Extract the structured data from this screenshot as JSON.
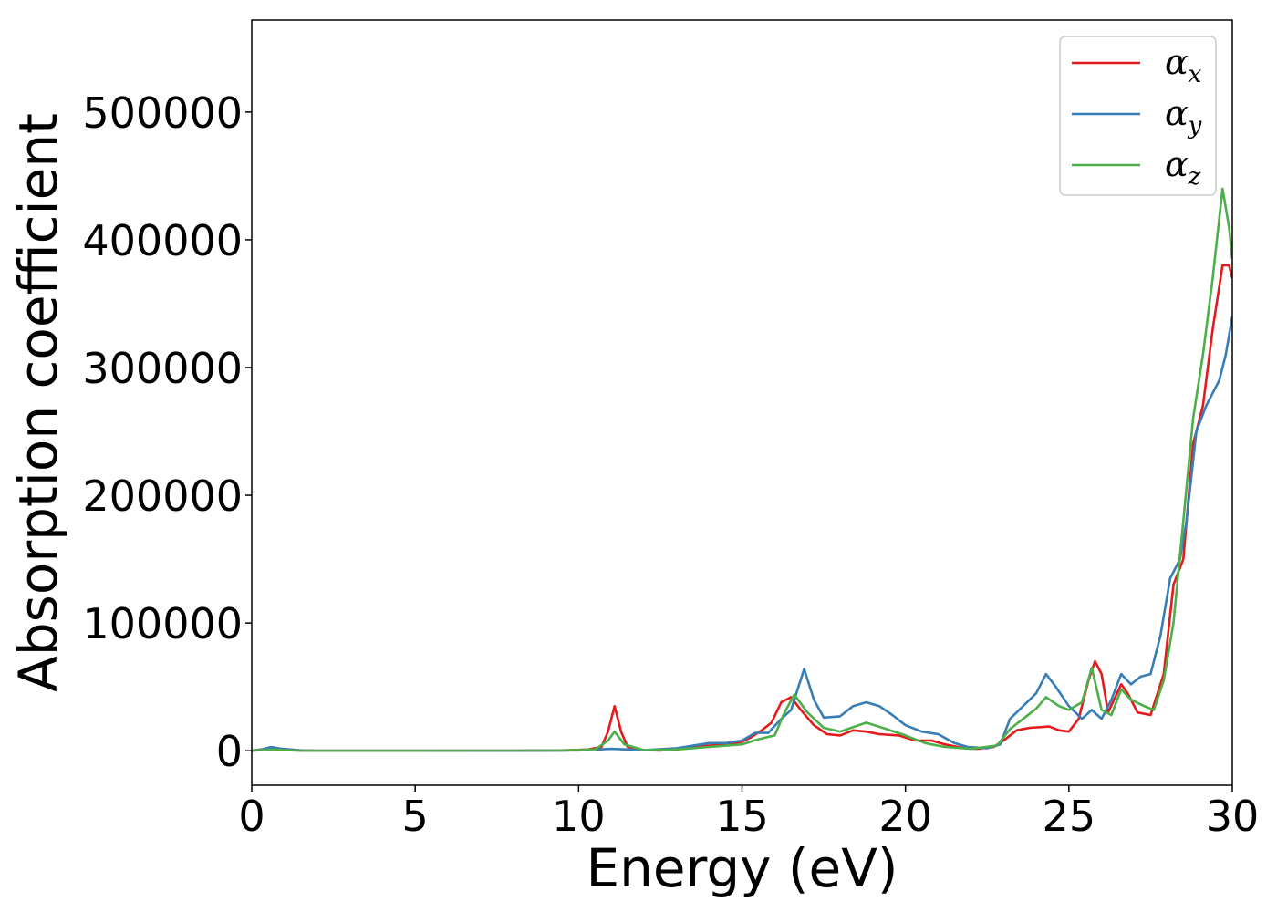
{
  "chart_data": {
    "type": "line",
    "xlabel": "Energy (eV)",
    "ylabel": "Absorption coefficient",
    "xlim": [
      0,
      30
    ],
    "ylim": [
      -27000,
      572000
    ],
    "xticks": [
      0,
      5,
      10,
      15,
      20,
      25,
      30
    ],
    "xtick_labels": [
      "0",
      "5",
      "10",
      "15",
      "20",
      "25",
      "30"
    ],
    "yticks": [
      0,
      100000,
      200000,
      300000,
      400000,
      500000
    ],
    "ytick_labels": [
      "0",
      "100000",
      "200000",
      "300000",
      "400000",
      "500000"
    ],
    "grid": false,
    "legend_position": "top-right",
    "series": [
      {
        "name": "α_x",
        "legend_base": "α",
        "legend_sub": "x",
        "color": "#e41a1c",
        "points": [
          [
            0,
            0
          ],
          [
            0.3,
            1000
          ],
          [
            0.6,
            2500
          ],
          [
            0.9,
            1500
          ],
          [
            1.5,
            300
          ],
          [
            2,
            0
          ],
          [
            5,
            0
          ],
          [
            8,
            0
          ],
          [
            9.5,
            300
          ],
          [
            10.3,
            1000
          ],
          [
            10.7,
            3000
          ],
          [
            10.9,
            15000
          ],
          [
            11.1,
            35000
          ],
          [
            11.3,
            15000
          ],
          [
            11.5,
            3000
          ],
          [
            12,
            500
          ],
          [
            12.5,
            200
          ],
          [
            13,
            1500
          ],
          [
            14,
            4000
          ],
          [
            14.5,
            5000
          ],
          [
            15,
            7000
          ],
          [
            15.3,
            11000
          ],
          [
            15.6,
            16000
          ],
          [
            15.9,
            22000
          ],
          [
            16.2,
            38000
          ],
          [
            16.5,
            42000
          ],
          [
            16.8,
            32000
          ],
          [
            17.2,
            20000
          ],
          [
            17.6,
            13000
          ],
          [
            18,
            12000
          ],
          [
            18.4,
            16000
          ],
          [
            18.8,
            15000
          ],
          [
            19.2,
            13000
          ],
          [
            19.8,
            12000
          ],
          [
            20.3,
            8000
          ],
          [
            20.8,
            8000
          ],
          [
            21.2,
            5000
          ],
          [
            21.8,
            2000
          ],
          [
            22.2,
            1500
          ],
          [
            22.7,
            3000
          ],
          [
            23,
            8000
          ],
          [
            23.4,
            16000
          ],
          [
            23.8,
            18000
          ],
          [
            24.4,
            19000
          ],
          [
            24.7,
            16000
          ],
          [
            25,
            15000
          ],
          [
            25.3,
            25000
          ],
          [
            25.6,
            55000
          ],
          [
            25.8,
            70000
          ],
          [
            26,
            60000
          ],
          [
            26.2,
            30000
          ],
          [
            26.6,
            52000
          ],
          [
            26.8,
            45000
          ],
          [
            27.1,
            30000
          ],
          [
            27.5,
            28000
          ],
          [
            27.9,
            60000
          ],
          [
            28.2,
            130000
          ],
          [
            28.5,
            150000
          ],
          [
            28.8,
            240000
          ],
          [
            29.1,
            270000
          ],
          [
            29.4,
            330000
          ],
          [
            29.7,
            380000
          ],
          [
            29.9,
            380000
          ],
          [
            30,
            370000
          ]
        ]
      },
      {
        "name": "α_y",
        "legend_base": "α",
        "legend_sub": "y",
        "color": "#377eb8",
        "points": [
          [
            0,
            0
          ],
          [
            0.3,
            1000
          ],
          [
            0.6,
            3000
          ],
          [
            0.9,
            1500
          ],
          [
            1.5,
            300
          ],
          [
            2,
            0
          ],
          [
            5,
            0
          ],
          [
            8,
            0
          ],
          [
            10,
            300
          ],
          [
            11,
            1500
          ],
          [
            11.5,
            1000
          ],
          [
            12,
            500
          ],
          [
            13,
            2000
          ],
          [
            14,
            6000
          ],
          [
            14.5,
            6000
          ],
          [
            15,
            8000
          ],
          [
            15.4,
            14000
          ],
          [
            15.8,
            14000
          ],
          [
            16.2,
            25000
          ],
          [
            16.5,
            32000
          ],
          [
            16.9,
            64000
          ],
          [
            17.2,
            40000
          ],
          [
            17.5,
            26000
          ],
          [
            18,
            27000
          ],
          [
            18.4,
            35000
          ],
          [
            18.8,
            38000
          ],
          [
            19.2,
            35000
          ],
          [
            19.6,
            28000
          ],
          [
            20,
            20000
          ],
          [
            20.5,
            15000
          ],
          [
            21,
            13000
          ],
          [
            21.5,
            6000
          ],
          [
            21.9,
            3000
          ],
          [
            22.5,
            2000
          ],
          [
            22.9,
            5000
          ],
          [
            23.2,
            25000
          ],
          [
            23.6,
            35000
          ],
          [
            24,
            45000
          ],
          [
            24.3,
            60000
          ],
          [
            24.6,
            50000
          ],
          [
            25,
            35000
          ],
          [
            25.4,
            25000
          ],
          [
            25.7,
            32000
          ],
          [
            26,
            25000
          ],
          [
            26.3,
            40000
          ],
          [
            26.6,
            60000
          ],
          [
            26.9,
            52000
          ],
          [
            27.2,
            58000
          ],
          [
            27.5,
            60000
          ],
          [
            27.8,
            90000
          ],
          [
            28.1,
            135000
          ],
          [
            28.4,
            150000
          ],
          [
            28.6,
            180000
          ],
          [
            28.9,
            250000
          ],
          [
            29.2,
            270000
          ],
          [
            29.4,
            280000
          ],
          [
            29.6,
            290000
          ],
          [
            29.8,
            310000
          ],
          [
            30,
            340000
          ]
        ]
      },
      {
        "name": "α_z",
        "legend_base": "α",
        "legend_sub": "z",
        "color": "#4daf4a",
        "points": [
          [
            0,
            0
          ],
          [
            0.3,
            500
          ],
          [
            0.6,
            1000
          ],
          [
            1,
            500
          ],
          [
            1.5,
            0
          ],
          [
            5,
            0
          ],
          [
            9.5,
            200
          ],
          [
            10.5,
            1000
          ],
          [
            10.9,
            8000
          ],
          [
            11.1,
            15000
          ],
          [
            11.4,
            5000
          ],
          [
            12,
            500
          ],
          [
            13,
            1000
          ],
          [
            14,
            3000
          ],
          [
            15,
            5000
          ],
          [
            15.5,
            9000
          ],
          [
            16,
            12000
          ],
          [
            16.3,
            30000
          ],
          [
            16.6,
            44000
          ],
          [
            17,
            30000
          ],
          [
            17.5,
            18000
          ],
          [
            18,
            15000
          ],
          [
            18.8,
            22000
          ],
          [
            19.3,
            18000
          ],
          [
            20,
            12000
          ],
          [
            20.6,
            6000
          ],
          [
            21.2,
            3000
          ],
          [
            22,
            1500
          ],
          [
            22.8,
            4000
          ],
          [
            23.2,
            17000
          ],
          [
            23.6,
            25000
          ],
          [
            24,
            33000
          ],
          [
            24.3,
            42000
          ],
          [
            24.7,
            35000
          ],
          [
            25,
            32000
          ],
          [
            25.4,
            38000
          ],
          [
            25.7,
            65000
          ],
          [
            26,
            32000
          ],
          [
            26.3,
            28000
          ],
          [
            26.6,
            48000
          ],
          [
            26.9,
            40000
          ],
          [
            27.3,
            35000
          ],
          [
            27.6,
            32000
          ],
          [
            27.9,
            55000
          ],
          [
            28.2,
            100000
          ],
          [
            28.5,
            180000
          ],
          [
            28.8,
            260000
          ],
          [
            29.1,
            310000
          ],
          [
            29.4,
            370000
          ],
          [
            29.7,
            440000
          ],
          [
            29.9,
            410000
          ],
          [
            30,
            385000
          ]
        ]
      }
    ]
  }
}
